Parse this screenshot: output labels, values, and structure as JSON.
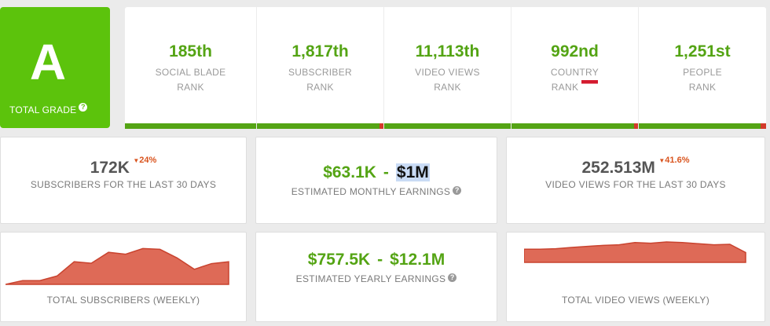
{
  "grade": {
    "letter": "A",
    "label": "TOTAL GRADE",
    "help_icon": "question-icon"
  },
  "ranks": [
    {
      "value": "185th",
      "line1": "SOCIAL BLADE",
      "line2": "RANK",
      "bar_red_fraction": 0.0
    },
    {
      "value": "1,817th",
      "line1": "SUBSCRIBER",
      "line2": "RANK",
      "bar_red_fraction": 0.03
    },
    {
      "value": "11,113th",
      "line1": "VIDEO VIEWS",
      "line2": "RANK",
      "bar_red_fraction": 0.0
    },
    {
      "value": "992nd",
      "line1": "COUNTRY",
      "line2": "RANK",
      "bar_red_fraction": 0.03,
      "flag": "indonesia-flag"
    },
    {
      "value": "1,251st",
      "line1": "PEOPLE",
      "line2": "RANK",
      "bar_red_fraction": 0.04
    }
  ],
  "stats": {
    "subs_value": "172K",
    "subs_change": "24%",
    "subs_label": "SUBSCRIBERS FOR THE LAST 30 DAYS",
    "monthly_low": "$63.1K",
    "monthly_sep": "-",
    "monthly_high": "$1M",
    "monthly_label": "ESTIMATED MONTHLY EARNINGS",
    "views_value": "252.513M",
    "views_change": "41.6%",
    "views_label": "VIDEO VIEWS FOR THE LAST 30 DAYS",
    "yearly_low": "$757.5K",
    "yearly_sep": "-",
    "yearly_high": "$12.1M",
    "yearly_label": "ESTIMATED YEARLY EARNINGS",
    "subs_chart_label": "TOTAL SUBSCRIBERS (WEEKLY)",
    "views_chart_label": "TOTAL VIDEO VIEWS (WEEKLY)"
  },
  "colors": {
    "green": "#54a414",
    "grade_green": "#5cc30c",
    "red": "#d33a2a",
    "area_fill": "#de6a57",
    "area_line": "#c9432f"
  },
  "sparklines": {
    "subscribers_weekly": [
      0.0,
      0.1,
      0.1,
      0.22,
      0.6,
      0.56,
      0.85,
      0.8,
      0.95,
      0.93,
      0.7,
      0.4,
      0.55,
      0.6
    ],
    "views_weekly": [
      0.6,
      0.6,
      0.62,
      0.68,
      0.73,
      0.77,
      0.8,
      0.9,
      0.87,
      0.93,
      0.9,
      0.85,
      0.8,
      0.82,
      0.45
    ]
  }
}
